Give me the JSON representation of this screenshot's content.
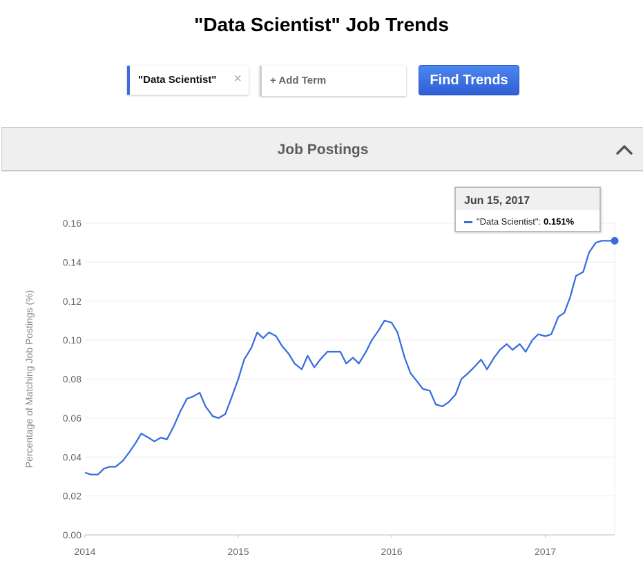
{
  "page": {
    "title": "\"Data Scientist\" Job Trends"
  },
  "search": {
    "term": "\"Data Scientist\"",
    "remove_glyph": "×",
    "add_placeholder": "+ Add Term",
    "find_label": "Find Trends"
  },
  "panel": {
    "title": "Job Postings",
    "toggle_icon": "chevron-up-icon"
  },
  "tooltip": {
    "date": "Jun 15, 2017",
    "series": "\"Data Scientist\":",
    "value": "0.151%"
  },
  "chart_data": {
    "type": "line",
    "title": "",
    "ylabel": "Percentage of Matching Job Postings (%)",
    "xlabel": "",
    "ylim": [
      0,
      0.16
    ],
    "yticks": [
      "0.00",
      "0.02",
      "0.04",
      "0.06",
      "0.08",
      "0.10",
      "0.12",
      "0.14",
      "0.16"
    ],
    "xticks": [
      "2014",
      "2015",
      "2016",
      "2017"
    ],
    "xlim": [
      "2014-01-01",
      "2017-06-15"
    ],
    "grid": true,
    "color": "#3a6ee0",
    "series": [
      {
        "name": "\"Data Scientist\"",
        "x": [
          "2014-01-01",
          "2014-01-15",
          "2014-02-01",
          "2014-02-15",
          "2014-03-01",
          "2014-03-15",
          "2014-04-01",
          "2014-04-15",
          "2014-05-01",
          "2014-05-15",
          "2014-06-01",
          "2014-06-15",
          "2014-07-01",
          "2014-07-15",
          "2014-08-01",
          "2014-08-15",
          "2014-09-01",
          "2014-09-15",
          "2014-10-01",
          "2014-10-15",
          "2014-11-01",
          "2014-11-15",
          "2014-12-01",
          "2014-12-15",
          "2015-01-01",
          "2015-01-15",
          "2015-02-01",
          "2015-02-15",
          "2015-03-01",
          "2015-03-15",
          "2015-04-01",
          "2015-04-15",
          "2015-05-01",
          "2015-05-15",
          "2015-06-01",
          "2015-06-15",
          "2015-07-01",
          "2015-07-15",
          "2015-08-01",
          "2015-08-15",
          "2015-09-01",
          "2015-09-15",
          "2015-10-01",
          "2015-10-15",
          "2015-11-01",
          "2015-11-15",
          "2015-12-01",
          "2015-12-15",
          "2016-01-01",
          "2016-01-15",
          "2016-02-01",
          "2016-02-15",
          "2016-03-01",
          "2016-03-15",
          "2016-04-01",
          "2016-04-15",
          "2016-05-01",
          "2016-05-15",
          "2016-06-01",
          "2016-06-15",
          "2016-07-01",
          "2016-07-15",
          "2016-08-01",
          "2016-08-15",
          "2016-09-01",
          "2016-09-15",
          "2016-10-01",
          "2016-10-15",
          "2016-11-01",
          "2016-11-15",
          "2016-12-01",
          "2016-12-15",
          "2017-01-01",
          "2017-01-15",
          "2017-02-01",
          "2017-02-15",
          "2017-03-01",
          "2017-03-15",
          "2017-04-01",
          "2017-04-15",
          "2017-05-01",
          "2017-05-15",
          "2017-06-01",
          "2017-06-15"
        ],
        "values": [
          0.032,
          0.031,
          0.031,
          0.034,
          0.035,
          0.035,
          0.038,
          0.042,
          0.047,
          0.052,
          0.05,
          0.048,
          0.05,
          0.049,
          0.056,
          0.063,
          0.07,
          0.071,
          0.073,
          0.066,
          0.061,
          0.06,
          0.062,
          0.07,
          0.08,
          0.09,
          0.096,
          0.104,
          0.101,
          0.104,
          0.102,
          0.097,
          0.093,
          0.088,
          0.085,
          0.092,
          0.086,
          0.09,
          0.094,
          0.094,
          0.094,
          0.088,
          0.091,
          0.088,
          0.094,
          0.1,
          0.105,
          0.11,
          0.109,
          0.104,
          0.091,
          0.083,
          0.079,
          0.075,
          0.074,
          0.067,
          0.066,
          0.068,
          0.072,
          0.08,
          0.083,
          0.086,
          0.09,
          0.085,
          0.091,
          0.095,
          0.098,
          0.095,
          0.098,
          0.094,
          0.1,
          0.103,
          0.102,
          0.103,
          0.112,
          0.114,
          0.122,
          0.133,
          0.135,
          0.145,
          0.15,
          0.151,
          0.151,
          0.151
        ]
      }
    ]
  }
}
